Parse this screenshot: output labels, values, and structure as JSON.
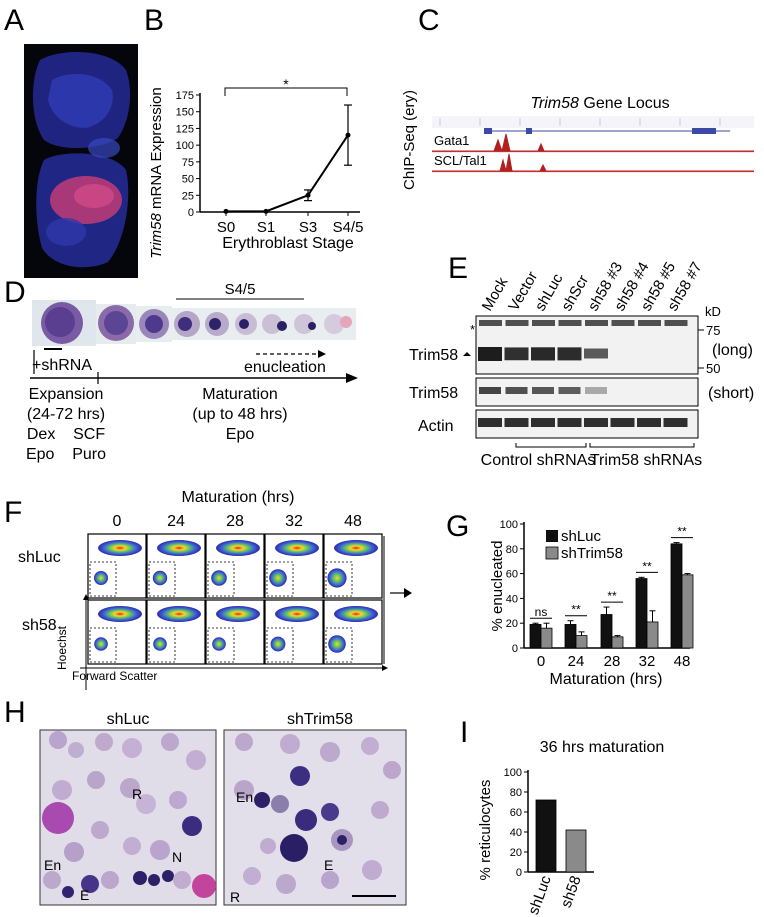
{
  "panels": {
    "a": "A",
    "b": "B",
    "c": "C",
    "d": "D",
    "e": "E",
    "f": "F",
    "g": "G",
    "h": "H",
    "i": "I"
  },
  "panel_b": {
    "ylabel_gene": "Trim58",
    "ylabel_rest": " mRNA Expression",
    "xlabel": "Erythroblast Stage",
    "significance": "*",
    "chart_data": {
      "type": "line",
      "categories": [
        "S0",
        "S1",
        "S3",
        "S4/5"
      ],
      "values": [
        1,
        1,
        25,
        115
      ],
      "errors": [
        1,
        1,
        8,
        45
      ],
      "ylim": [
        0,
        175
      ],
      "yticks": [
        "0",
        "25",
        "50",
        "75",
        "100",
        "125",
        "150",
        "175"
      ],
      "xlabel": "Erythroblast Stage",
      "ylabel": "Trim58 mRNA Expression"
    }
  },
  "panel_c": {
    "ylabel": "ChIP-Seq (ery)",
    "title_gene": "Trim58",
    "title_rest": " Gene Locus",
    "tracks": [
      "Gata1",
      "SCL/Tal1"
    ]
  },
  "panel_d": {
    "stage_label": "S4/5",
    "shrna_label": "+shRNA",
    "enucleation_label": "enucleation",
    "expansion_lines": [
      "Expansion",
      "(24-72 hrs)",
      "Dex    SCF",
      "Epo    Puro"
    ],
    "maturation_lines": [
      "Maturation",
      "(up to 48 hrs)",
      "Epo"
    ]
  },
  "panel_e": {
    "lanes": [
      "Mock",
      "Vector",
      "shLuc",
      "shScr",
      "sh58 #3",
      "sh58 #4",
      "sh58 #5",
      "sh58 #7"
    ],
    "kd_label": "kD",
    "mw_markers": [
      "75",
      "50"
    ],
    "star": "*",
    "rows": [
      "Trim58",
      "Trim58",
      "Actin"
    ],
    "exposures": [
      "(long)",
      "(short)"
    ],
    "groups": [
      "Control shRNAs",
      "Trim58 shRNAs"
    ]
  },
  "panel_f": {
    "title": "Maturation (hrs)",
    "timepoints": [
      "0",
      "24",
      "28",
      "32",
      "48"
    ],
    "rows": [
      "shLuc",
      "sh58"
    ],
    "ylabel": "Hoechst",
    "xlabel": "Forward Scatter"
  },
  "panel_g": {
    "ylabel": "% enucleated",
    "xlabel": "Maturation (hrs)",
    "significance": [
      "ns",
      "**",
      "**",
      "**",
      "**"
    ],
    "legend_colors": [
      "#111111",
      "#8a8a8a"
    ],
    "chart_data": {
      "type": "bar",
      "categories": [
        "0",
        "24",
        "28",
        "32",
        "48"
      ],
      "series": [
        {
          "name": "shLuc",
          "values": [
            19,
            19,
            27,
            56,
            84
          ],
          "errors": [
            1,
            3,
            6,
            1,
            1
          ]
        },
        {
          "name": "shTrim58",
          "values": [
            16,
            10,
            9,
            21,
            59
          ],
          "errors": [
            4,
            3,
            1,
            9,
            1
          ]
        }
      ],
      "ylim": [
        0,
        100
      ],
      "yticks": [
        "0",
        "20",
        "40",
        "60",
        "80",
        "100"
      ]
    }
  },
  "panel_h": {
    "titles": [
      "shLuc",
      "shTrim58"
    ],
    "left_labels": [
      "R",
      "En",
      "E",
      "N"
    ],
    "right_labels": [
      "En",
      "E",
      "R"
    ]
  },
  "panel_i": {
    "title": "36 hrs maturation",
    "ylabel": "% reticulocytes",
    "chart_data": {
      "type": "bar",
      "categories": [
        "shLuc",
        "sh58"
      ],
      "values": [
        72,
        42
      ],
      "colors": [
        "#111111",
        "#8a8a8a"
      ],
      "ylim": [
        0,
        100
      ],
      "yticks": [
        "0",
        "20",
        "40",
        "60",
        "80",
        "100"
      ]
    }
  }
}
